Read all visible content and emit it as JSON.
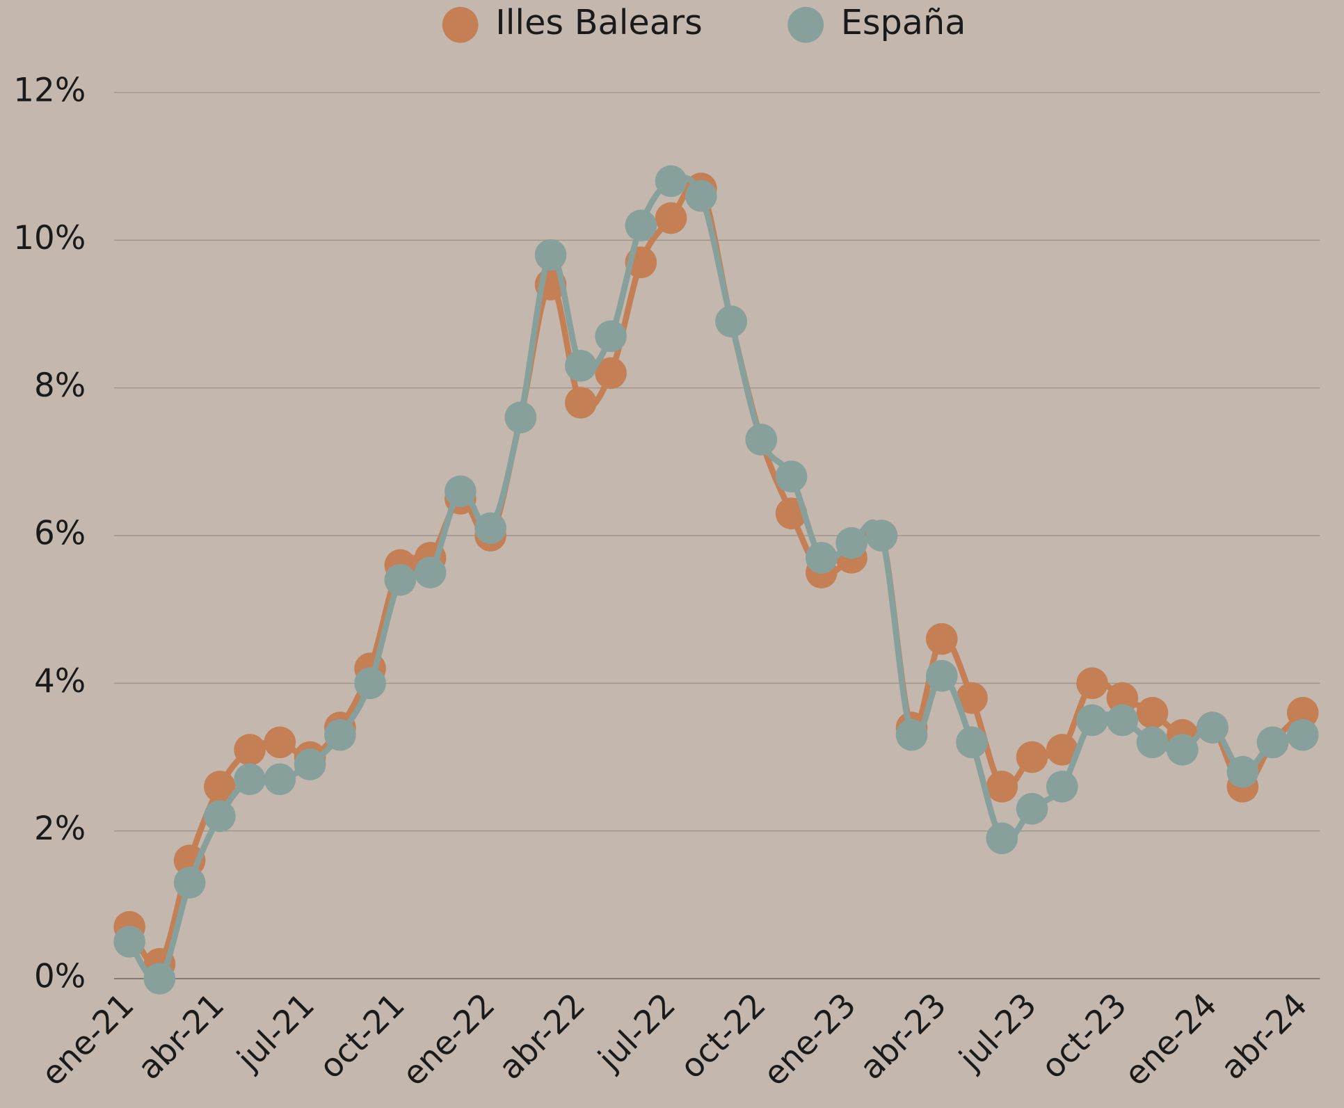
{
  "chart_data": {
    "type": "line",
    "categories": [
      "ene-21",
      null,
      null,
      "abr-21",
      null,
      null,
      "jul-21",
      null,
      null,
      "oct-21",
      null,
      null,
      "ene-22",
      null,
      null,
      "abr-22",
      null,
      null,
      "jul-22",
      null,
      null,
      "oct-22",
      null,
      null,
      "ene-23",
      null,
      null,
      "abr-23",
      null,
      null,
      "jul-23",
      null,
      null,
      "oct-23",
      null,
      null,
      "ene-24",
      null,
      null,
      "abr-24"
    ],
    "series": [
      {
        "name": "Illes Balears",
        "color": "#c47f55",
        "values": [
          0.7,
          0.2,
          1.6,
          2.6,
          3.1,
          3.2,
          3.0,
          3.4,
          4.2,
          5.6,
          5.7,
          6.5,
          6.0,
          7.6,
          9.4,
          7.8,
          8.2,
          9.7,
          10.3,
          10.7,
          8.9,
          7.3,
          6.3,
          5.5,
          5.7,
          6.0,
          3.4,
          4.6,
          3.8,
          2.6,
          3.0,
          3.1,
          4.0,
          3.8,
          3.6,
          3.3,
          3.4,
          2.6,
          3.2,
          3.6
        ]
      },
      {
        "name": "España",
        "color": "#87a09c",
        "values": [
          0.5,
          0.0,
          1.3,
          2.2,
          2.7,
          2.7,
          2.9,
          3.3,
          4.0,
          5.4,
          5.5,
          6.6,
          6.1,
          7.6,
          9.8,
          8.3,
          8.7,
          10.2,
          10.8,
          10.6,
          8.9,
          7.3,
          6.8,
          5.7,
          5.9,
          6.0,
          3.3,
          4.1,
          3.2,
          1.9,
          2.3,
          2.6,
          3.5,
          3.5,
          3.2,
          3.1,
          3.4,
          2.8,
          3.2,
          3.3
        ]
      }
    ],
    "ylim": [
      0,
      12
    ],
    "yticks": [
      {
        "value": 0,
        "label": "0%"
      },
      {
        "value": 2,
        "label": "2%"
      },
      {
        "value": 4,
        "label": "4%"
      },
      {
        "value": 6,
        "label": "6%"
      },
      {
        "value": 8,
        "label": "8%"
      },
      {
        "value": 10,
        "label": "10%"
      },
      {
        "value": 12,
        "label": "12%"
      }
    ],
    "grid": true,
    "legend": "top"
  }
}
